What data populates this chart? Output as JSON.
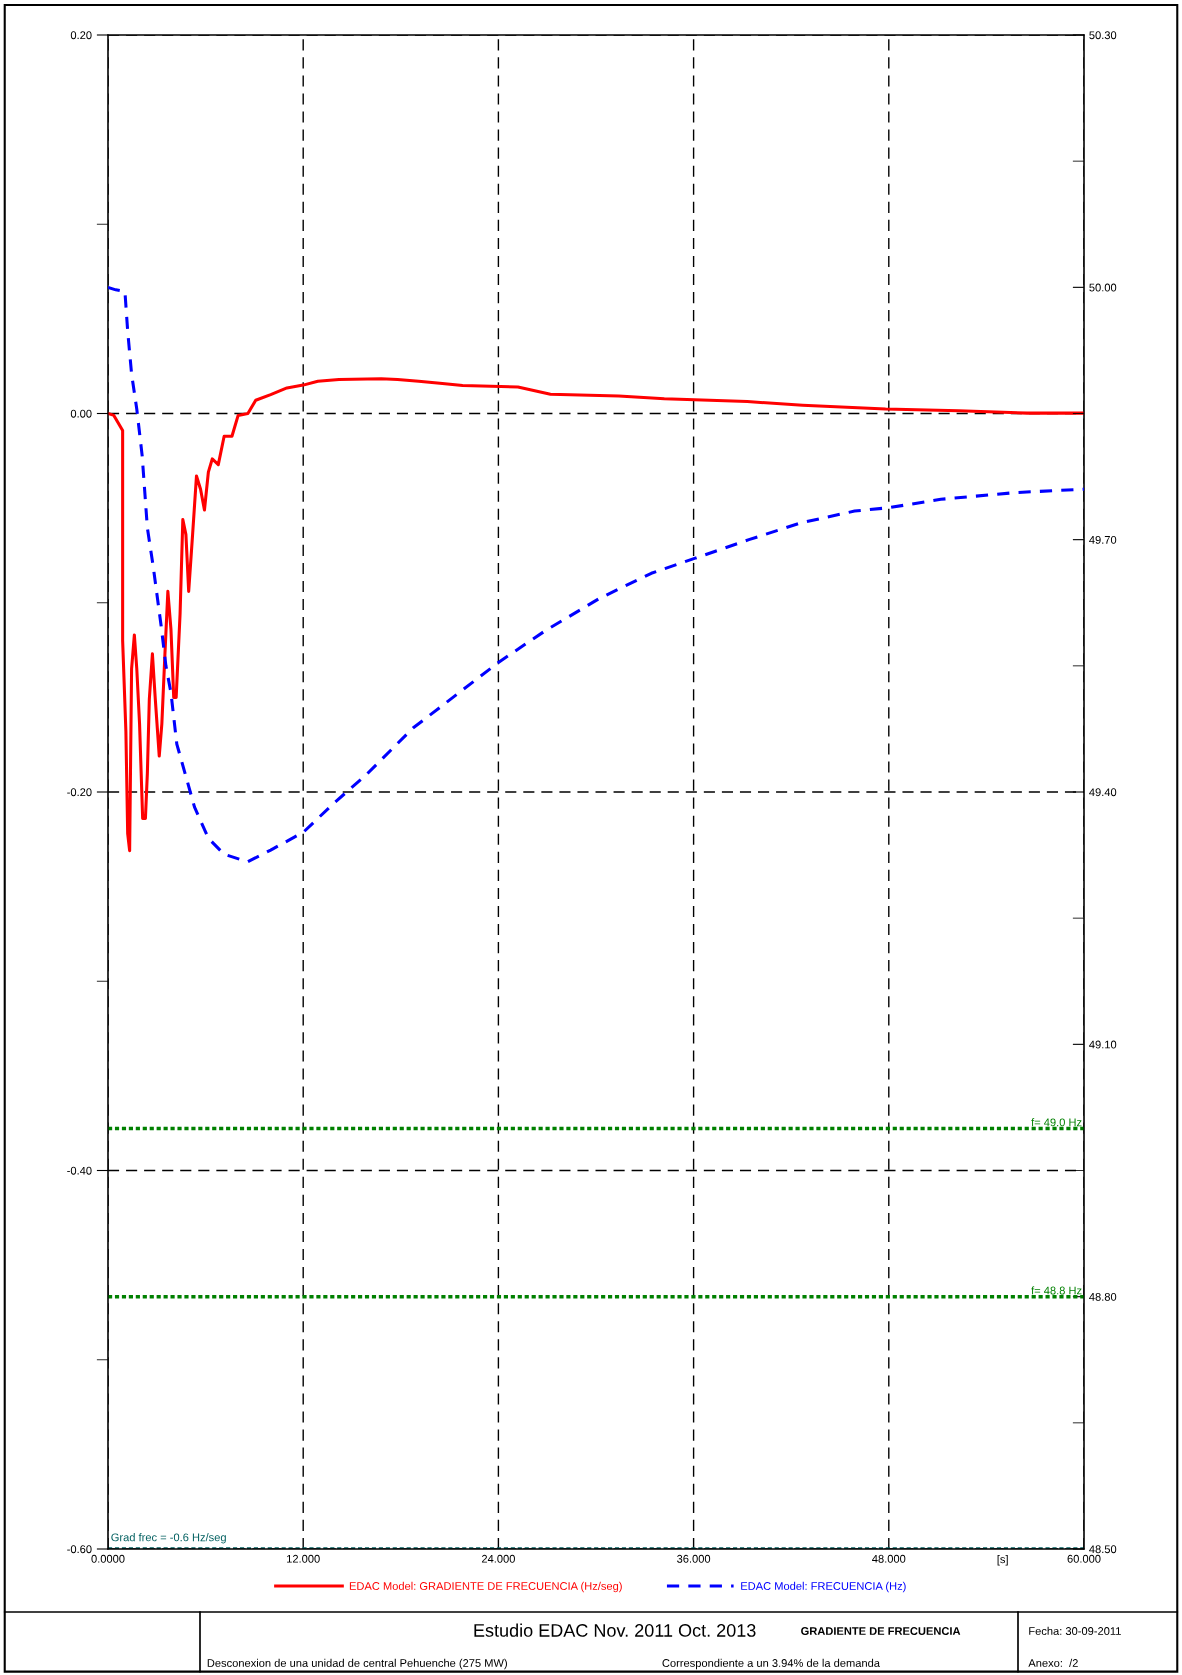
{
  "chart_data": {
    "type": "line",
    "title": "Estudio EDAC Nov. 2011 Oct. 2013",
    "xlabel": "[s]",
    "xlim": [
      0,
      60
    ],
    "xticks": [
      {
        "value": 0,
        "label": "0.0000"
      },
      {
        "value": 12,
        "label": "12.000"
      },
      {
        "value": 24,
        "label": "24.000"
      },
      {
        "value": 36,
        "label": "36.000"
      },
      {
        "value": 48,
        "label": "48.000"
      },
      {
        "value": 60,
        "label": "60.000"
      }
    ],
    "ylim": [
      -0.6,
      0.2
    ],
    "yticks": [
      {
        "value": 0.2,
        "label": "0.20"
      },
      {
        "value": 0.1,
        "label": null
      },
      {
        "value": 0,
        "label": "0.00"
      },
      {
        "value": -0.1,
        "label": null
      },
      {
        "value": -0.2,
        "label": "-0.20"
      },
      {
        "value": -0.3,
        "label": null
      },
      {
        "value": -0.4,
        "label": "-0.40"
      },
      {
        "value": -0.5,
        "label": null
      },
      {
        "value": -0.6,
        "label": "-0.60"
      }
    ],
    "y2lim": [
      48.5,
      50.3
    ],
    "y2ticks": [
      {
        "value": 50.3,
        "label": "50.30"
      },
      {
        "value": 50.15,
        "label": null
      },
      {
        "value": 50.0,
        "label": "50.00"
      },
      {
        "value": 49.85,
        "label": null
      },
      {
        "value": 49.7,
        "label": "49.70"
      },
      {
        "value": 49.55,
        "label": null
      },
      {
        "value": 49.4,
        "label": "49.40"
      },
      {
        "value": 49.25,
        "label": null
      },
      {
        "value": 49.1,
        "label": "49.10"
      },
      {
        "value": 48.95,
        "label": null
      },
      {
        "value": 48.8,
        "label": "48.80"
      },
      {
        "value": 48.65,
        "label": null
      },
      {
        "value": 48.5,
        "label": "48.50"
      }
    ],
    "grid": true,
    "legend": "bottom",
    "series": [
      {
        "name": "EDAC Model: GRADIENTE DE FRECUENCIA (Hz/seg)",
        "color": "#ff0000",
        "line_style": "solid",
        "x": [
          0,
          0.36,
          0.9,
          0.9,
          1.1,
          1.21,
          1.33,
          1.45,
          1.62,
          1.77,
          1.94,
          2.13,
          2.3,
          2.42,
          2.54,
          2.73,
          2.9,
          3.15,
          3.31,
          3.5,
          3.68,
          3.87,
          4.04,
          4.19,
          4.43,
          4.6,
          4.79,
          4.96,
          5.2,
          5.44,
          5.69,
          5.93,
          6.17,
          6.41,
          6.78,
          7.14,
          7.62,
          8.0,
          8.6,
          9.08,
          10.0,
          11.0,
          12.0,
          12.9,
          14.2,
          16.8,
          17.8,
          19.1,
          20.4,
          21.8,
          25.2,
          27.2,
          31.4,
          34.2,
          39.3,
          42.7,
          47.8,
          52.3,
          56.5,
          60
        ],
        "values": [
          0,
          -0.001,
          -0.009,
          -0.12,
          -0.168,
          -0.222,
          -0.231,
          -0.135,
          -0.117,
          -0.135,
          -0.164,
          -0.214,
          -0.214,
          -0.19,
          -0.151,
          -0.127,
          -0.15,
          -0.181,
          -0.164,
          -0.127,
          -0.094,
          -0.114,
          -0.15,
          -0.15,
          -0.106,
          -0.056,
          -0.064,
          -0.094,
          -0.064,
          -0.033,
          -0.04,
          -0.051,
          -0.031,
          -0.024,
          -0.027,
          -0.012,
          -0.012,
          -0.001,
          0,
          0.007,
          0.01,
          0.0135,
          0.015,
          0.017,
          0.018,
          0.0184,
          0.018,
          0.017,
          0.016,
          0.0148,
          0.014,
          0.0102,
          0.0092,
          0.0078,
          0.0063,
          0.0044,
          0.0024,
          0.0015,
          0.0002,
          0.0002
        ]
      },
      {
        "name": "EDAC Model: FRECUENCIA (Hz)",
        "color": "#0000ff",
        "line_style": "dashed",
        "axis": "y2",
        "x": [
          0,
          0.48,
          1.04,
          1.21,
          1.45,
          1.77,
          2.1,
          2.42,
          2.78,
          3.27,
          3.56,
          3.87,
          4.23,
          4.84,
          5.32,
          6.17,
          7.14,
          8.59,
          10.0,
          12.0,
          13.9,
          15.85,
          18.75,
          24.0,
          26.9,
          30.2,
          33.4,
          36.1,
          39.4,
          42.6,
          45.9,
          48.0,
          51.2,
          55.8,
          60
        ],
        "values": [
          50.0,
          49.997,
          49.995,
          49.948,
          49.897,
          49.855,
          49.8,
          49.714,
          49.668,
          49.597,
          49.55,
          49.518,
          49.457,
          49.415,
          49.382,
          49.345,
          49.326,
          49.317,
          49.331,
          49.352,
          49.387,
          49.42,
          49.476,
          49.554,
          49.592,
          49.63,
          49.66,
          49.678,
          49.7,
          49.72,
          49.734,
          49.738,
          49.748,
          49.756,
          49.76
        ]
      }
    ],
    "ref_lines": [
      {
        "axis": "y2",
        "value": 49.0,
        "label": "f= 49.0 Hz",
        "color": "#008000",
        "line_style": "dotted"
      },
      {
        "axis": "y2",
        "value": 48.8,
        "label": "f= 48.8 Hz",
        "color": "#008000",
        "line_style": "dotted"
      },
      {
        "axis": "y",
        "value": -0.6,
        "label": "Grad frec = -0.6 Hz/seg",
        "color": "#005f5f",
        "line_style": "dotted"
      }
    ],
    "annotations": [
      "GRADIENTE DE FRECUENCIA",
      "Fecha: 30-09-2011",
      "Desconexion de una unidad de central Pehuenche (275 MW)",
      "Correspondiente a un 3.94% de la demanda",
      "Anexo:  /2"
    ]
  }
}
